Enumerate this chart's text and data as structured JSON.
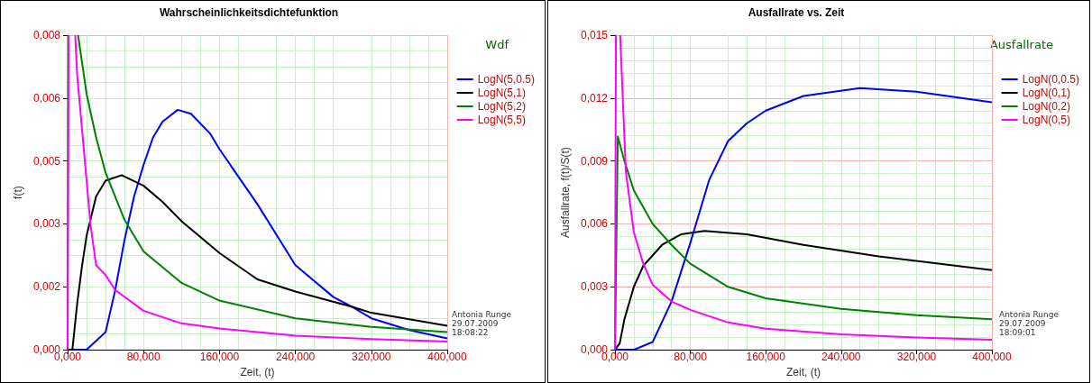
{
  "chart_data": [
    {
      "type": "line",
      "title": "Wahrscheinlichkeitsdichtefunktion",
      "xlabel": "Zeit, (t)",
      "ylabel": "f(t)",
      "legend_title": "Wdf",
      "legend": "right",
      "grid": true,
      "marker": "none",
      "line_style": "solid",
      "xlim": [
        0,
        400
      ],
      "xticks": [
        {
          "value": 0,
          "label": "0,000"
        },
        {
          "value": 80,
          "label": "80,000"
        },
        {
          "value": 160,
          "label": "160,000"
        },
        {
          "value": 240,
          "label": "240,000"
        },
        {
          "value": 320,
          "label": "320,000"
        },
        {
          "value": 400,
          "label": "400,000"
        }
      ],
      "ylim": [
        0,
        0.008
      ],
      "yticks": [
        {
          "value": 0,
          "label": "0,000"
        },
        {
          "value": 0.0016,
          "label": "0,002"
        },
        {
          "value": 0.0032,
          "label": "0,003"
        },
        {
          "value": 0.0048,
          "label": "0,005"
        },
        {
          "value": 0.0064,
          "label": "0,006"
        },
        {
          "value": 0.008,
          "label": "0,008"
        }
      ],
      "annotations": [
        "Antonia Runge",
        "29.07.2009",
        "18:08:22"
      ],
      "series": [
        {
          "name": "LogN(5,0.5)",
          "color": "#0000ff",
          "x": [
            0,
            20,
            40,
            50,
            60,
            70,
            80,
            90,
            100,
            116,
            130,
            150,
            160,
            180,
            200,
            240,
            280,
            300,
            320,
            360,
            400
          ],
          "values": [
            0,
            0,
            0.00045,
            0.0015,
            0.0028,
            0.0039,
            0.0047,
            0.0054,
            0.0058,
            0.0061,
            0.006,
            0.0055,
            0.0051,
            0.0044,
            0.0037,
            0.00215,
            0.00134,
            0.00109,
            0.0008,
            0.0005,
            0.00029
          ]
        },
        {
          "name": "LogN(5,1)",
          "color": "#000000",
          "x": [
            0,
            5,
            10,
            15,
            20,
            30,
            40,
            57,
            80,
            100,
            120,
            160,
            200,
            240,
            300,
            320,
            400
          ],
          "values": [
            0,
            0,
            0.00116,
            0.0021,
            0.0029,
            0.0039,
            0.0043,
            0.00444,
            0.00417,
            0.00376,
            0.00327,
            0.00246,
            0.00179,
            0.00148,
            0.00109,
            0.00094,
            0.00061
          ]
        },
        {
          "name": "LogN(5,2)",
          "color": "#008000",
          "x": [
            0,
            0.5,
            5,
            11,
            20,
            30,
            40,
            60,
            80,
            120,
            160,
            240,
            320,
            400
          ],
          "values": [
            0,
            0.008,
            null,
            0.008,
            0.0065,
            0.0054,
            0.0045,
            0.0033,
            0.0025,
            0.0017,
            0.00125,
            0.0008,
            0.00058,
            0.00045
          ]
        },
        {
          "name": "LogN(5,5)",
          "color": "#ff00ff",
          "x": [
            0,
            1,
            4,
            8,
            10,
            20,
            24,
            30,
            40,
            50,
            80,
            120,
            160,
            240,
            320,
            400
          ],
          "values": [
            0,
            0.008,
            null,
            0.008,
            0.007,
            0.0043,
            0.0032,
            0.00215,
            0.0019,
            0.00152,
            0.00099,
            0.00067,
            0.00054,
            0.00036,
            0.00027,
            0.00021
          ]
        }
      ]
    },
    {
      "type": "line",
      "title": "Ausfallrate vs. Zeit",
      "xlabel": "Zeit, (t)",
      "ylabel": "Ausfallrate, f(t)/S(t)",
      "legend_title": "Ausfallrate",
      "legend": "right",
      "grid": true,
      "marker": "none",
      "line_style": "solid",
      "xlim": [
        0,
        400
      ],
      "xticks": [
        {
          "value": 0,
          "label": "0,000"
        },
        {
          "value": 80,
          "label": "80,000"
        },
        {
          "value": 160,
          "label": "160,000"
        },
        {
          "value": 240,
          "label": "240,000"
        },
        {
          "value": 320,
          "label": "320,000"
        },
        {
          "value": 400,
          "label": "400,000"
        }
      ],
      "ylim": [
        0,
        0.015
      ],
      "yticks": [
        {
          "value": 0,
          "label": "0,000"
        },
        {
          "value": 0.003,
          "label": "0,003"
        },
        {
          "value": 0.006,
          "label": "0,006"
        },
        {
          "value": 0.009,
          "label": "0,009"
        },
        {
          "value": 0.012,
          "label": "0,012"
        },
        {
          "value": 0.015,
          "label": "0,015"
        }
      ],
      "annotations": [
        "Antonia Runge",
        "29.07.2009",
        "18:09:01"
      ],
      "series": [
        {
          "name": "LogN(0,0.5)",
          "color": "#0000ff",
          "x": [
            0,
            20,
            40,
            60,
            80,
            100,
            120,
            140,
            160,
            200,
            260,
            320,
            400
          ],
          "values": [
            0,
            0,
            0.00037,
            0.0023,
            0.0051,
            0.0081,
            0.00995,
            0.0108,
            0.0114,
            0.0121,
            0.01248,
            0.0123,
            0.0118
          ]
        },
        {
          "name": "LogN(0,1)",
          "color": "#000000",
          "x": [
            0,
            5,
            10,
            20,
            30,
            50,
            70,
            95,
            140,
            200,
            280,
            400
          ],
          "values": [
            0,
            0.0003,
            0.00145,
            0.003,
            0.004,
            0.005,
            0.0055,
            0.00567,
            0.0055,
            0.005,
            0.00445,
            0.0038
          ]
        },
        {
          "name": "LogN(0,2)",
          "color": "#008000",
          "x": [
            0,
            3,
            10,
            20,
            40,
            60,
            80,
            120,
            160,
            240,
            320,
            400
          ],
          "values": [
            0,
            0.01017,
            0.009,
            0.0076,
            0.006,
            0.005,
            0.0041,
            0.003,
            0.00245,
            0.00195,
            0.00165,
            0.00145
          ]
        },
        {
          "name": "LogN(0,5)",
          "color": "#ff00ff",
          "x": [
            0,
            1,
            3,
            5.5,
            11.5,
            20,
            30,
            40,
            60,
            80,
            120,
            160,
            240,
            320,
            400
          ],
          "values": [
            0,
            0.015,
            null,
            0.015,
            0.0085,
            0.0056,
            0.0041,
            0.0031,
            0.0023,
            0.0019,
            0.0013,
            0.001,
            0.00073,
            0.00058,
            0.00048
          ]
        }
      ]
    }
  ]
}
